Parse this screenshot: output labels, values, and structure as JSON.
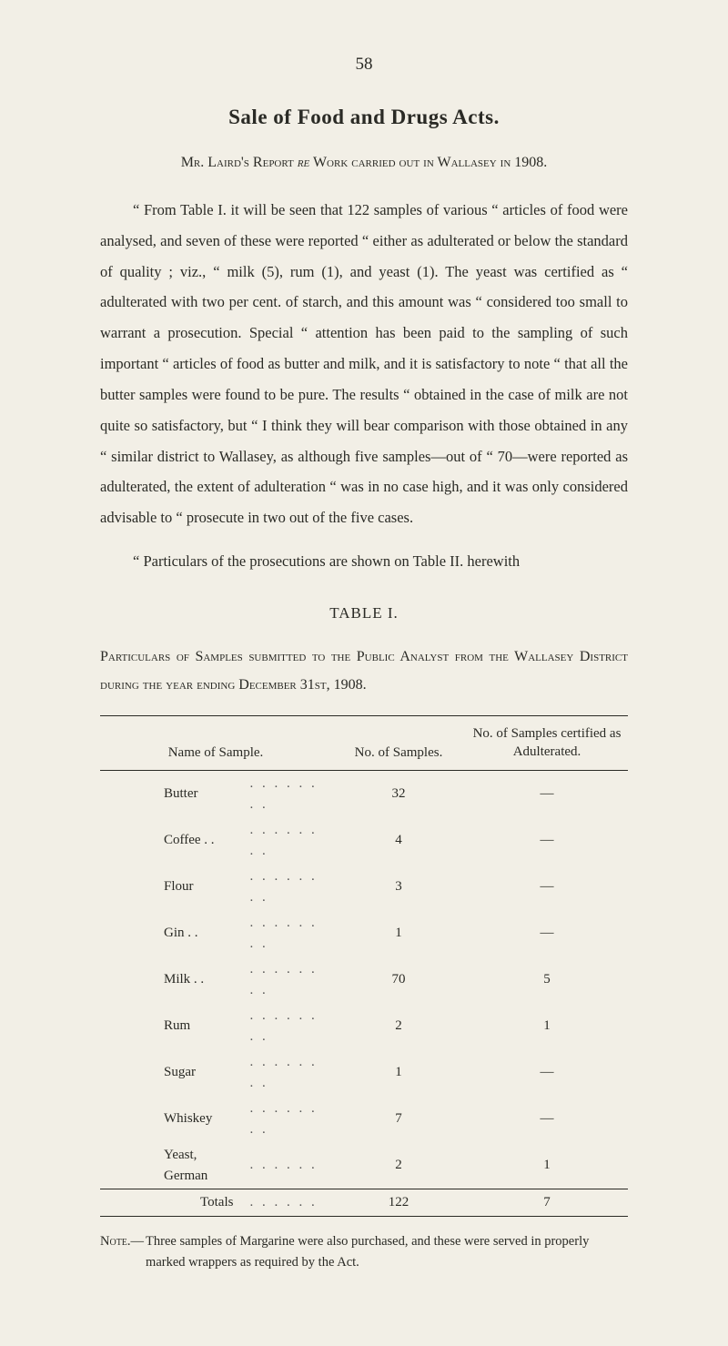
{
  "page_number": "58",
  "title": "Sale of Food and Drugs Acts.",
  "subtitle_parts": {
    "prefix": "Mr. Laird's Report ",
    "italic": "re",
    "rest": " Work carried out in Wallasey in 1908."
  },
  "paragraph1": "“ From Table I. it will be seen that 122 samples of various “ articles of food were analysed, and seven of these were reported “ either as adulterated or below the standard of quality ; viz., “ milk (5), rum (1), and yeast (1). The yeast was certified as “ adulterated with two per cent. of starch, and this amount was “ considered too small to warrant a prosecution. Special “ attention has been paid to the sampling of such important “ articles of food as butter and milk, and it is satisfactory to note “ that all the butter samples were found to be pure. The results “ obtained in the case of milk are not quite so satisfactory, but “ I think they will bear comparison with those obtained in any “ similar district to Wallasey, as although five samples—out of “ 70—were reported as adulterated, the extent of adulteration “ was in no case high, and it was only considered advisable to “ prosecute in two out of the five cases.",
  "paragraph2": "“ Particulars of the prosecutions are shown on Table II. herewith",
  "table_caption": "TABLE I.",
  "table_intro": "Particulars of Samples submitted to the Public Analyst from the Wallasey District during the year ending December 31st, 1908.",
  "table": {
    "columns": {
      "name": "Name of Sample.",
      "no": "No. of Samples.",
      "adult": "No. of Samples certified as Adulterated."
    },
    "rows": [
      {
        "name": "Butter",
        "dots": ". .   . .   . .   . .",
        "no": "32",
        "adult": "—"
      },
      {
        "name": "Coffee . .",
        "dots": ". .   . .   . .   . .",
        "no": "4",
        "adult": "—"
      },
      {
        "name": "Flour",
        "dots": ". .   . .   . .   . .",
        "no": "3",
        "adult": "—"
      },
      {
        "name": "Gin   . .",
        "dots": ". .   . .   . .   . .",
        "no": "1",
        "adult": "—"
      },
      {
        "name": "Milk  . .",
        "dots": ". .   . .   . .   . .",
        "no": "70",
        "adult": "5"
      },
      {
        "name": "Rum",
        "dots": ". .   . .   . .   . .",
        "no": "2",
        "adult": "1"
      },
      {
        "name": "Sugar",
        "dots": ". .   . .   . .   . .",
        "no": "1",
        "adult": "—"
      },
      {
        "name": "Whiskey",
        "dots": ". .   . .   . .   . .",
        "no": "7",
        "adult": "—"
      },
      {
        "name": "Yeast, German",
        "dots": ". .   . .   . .",
        "no": "2",
        "adult": "1"
      }
    ],
    "totals": {
      "label": "Totals",
      "dots": ". .   . .   . .",
      "no": "122",
      "adult": "7"
    }
  },
  "note": {
    "label": "Note.—",
    "text": "Three samples of Margarine were also purchased, and these were served in properly marked wrappers as required by the Act."
  },
  "colors": {
    "background": "#f2efe6",
    "text": "#2a2a25",
    "rule": "#2a2a25"
  }
}
